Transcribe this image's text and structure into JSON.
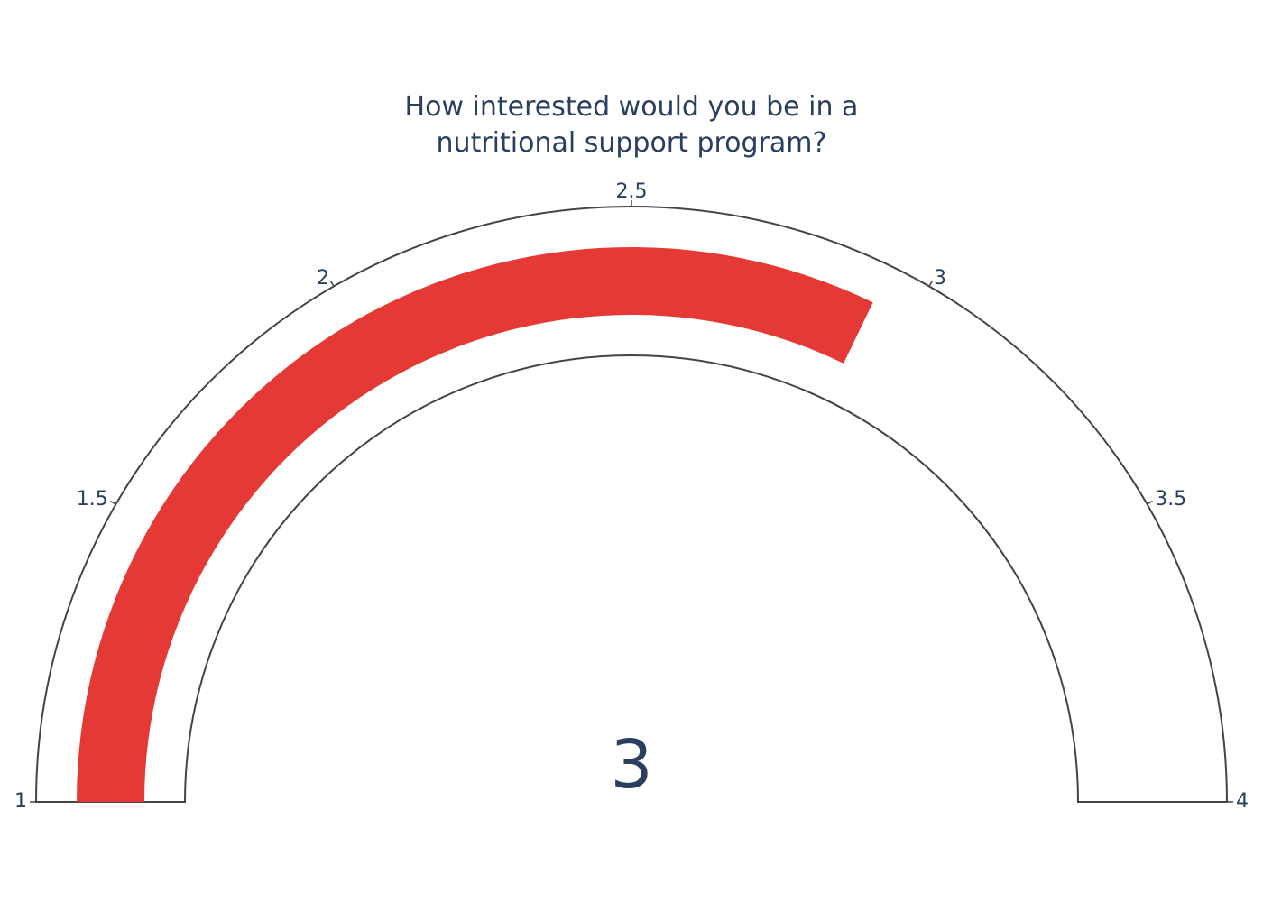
{
  "chart_data": {
    "type": "gauge",
    "title_lines": [
      "How interested would you be in a",
      "nutritional support program?"
    ],
    "value": 2.93,
    "value_display": "3",
    "range": [
      1,
      4
    ],
    "tick_values": [
      1,
      1.5,
      2,
      2.5,
      3,
      3.5,
      4
    ],
    "tick_labels": [
      "1",
      "1.5",
      "2",
      "2.5",
      "3",
      "3.5",
      "4"
    ],
    "bar_color": "#e53935",
    "outline_color": "#444444",
    "text_color": "#2a3f5f",
    "background": "#ffffff"
  }
}
